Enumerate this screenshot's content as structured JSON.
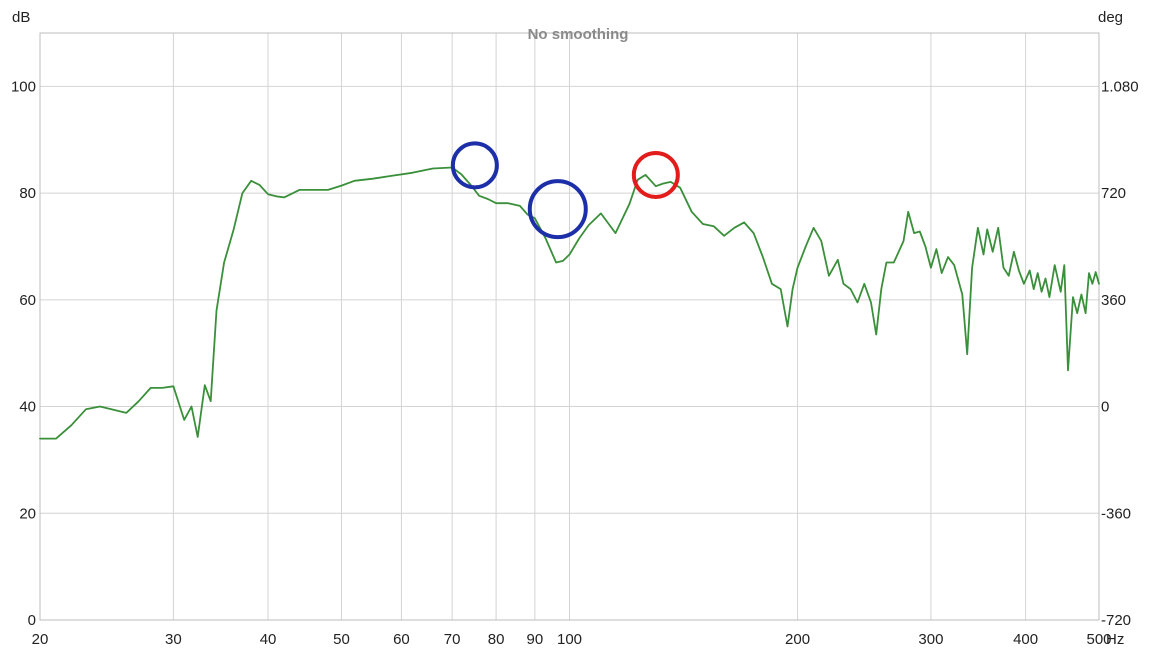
{
  "chart_data": {
    "type": "line",
    "title": "No smoothing",
    "y_unit": "dB",
    "y2_unit": "deg",
    "x_unit": "Hz",
    "x_scale": "log",
    "xlim": [
      20,
      500
    ],
    "ylim": [
      0,
      110
    ],
    "y2lim": [
      -720,
      1260
    ],
    "x_ticks": [
      20,
      30,
      40,
      50,
      60,
      70,
      80,
      90,
      100,
      200,
      300,
      400,
      500
    ],
    "x_tick_labels": [
      "20",
      "30",
      "40",
      "50",
      "60",
      "70",
      "80",
      "90",
      "100",
      "200",
      "300",
      "400",
      "500"
    ],
    "y_ticks": [
      0,
      20,
      40,
      60,
      80,
      100
    ],
    "y_tick_labels": [
      "0",
      "20",
      "40",
      "60",
      "80",
      "100"
    ],
    "y2_ticks": [
      -720,
      -360,
      0,
      360,
      720,
      1080
    ],
    "y2_tick_labels": [
      "-720",
      "-360",
      "0",
      "360",
      "720",
      "1.080"
    ],
    "grid": true,
    "series": [
      {
        "color": "#3a8f3a",
        "x": [
          20,
          21,
          22,
          23,
          24,
          26,
          27,
          28,
          29,
          30,
          31,
          31.7,
          32.3,
          33,
          33.6,
          34.2,
          35,
          36,
          37,
          38,
          39,
          40,
          41,
          42,
          44,
          46,
          48,
          50,
          52,
          55,
          58,
          62,
          66,
          70,
          72,
          74,
          76,
          78,
          80,
          83,
          86,
          88,
          90,
          93,
          96,
          98,
          100,
          103,
          106,
          110,
          115,
          120,
          123,
          126,
          130,
          133,
          136,
          140,
          145,
          150,
          155,
          160,
          165,
          170,
          175,
          180,
          185,
          190,
          194,
          197,
          200,
          205,
          210,
          215,
          220,
          226,
          230,
          235,
          240,
          245,
          250,
          254,
          258,
          262,
          268,
          272,
          276,
          280,
          285,
          290,
          295,
          300,
          305,
          310,
          316,
          322,
          330,
          335,
          340,
          346,
          352,
          356,
          362,
          368,
          374,
          380,
          386,
          392,
          398,
          405,
          410,
          415,
          420,
          425,
          430,
          437,
          445,
          450,
          455,
          462,
          468,
          474,
          480,
          485,
          490,
          495,
          500
        ],
        "values": [
          34,
          34,
          36.5,
          39.5,
          40,
          38.8,
          41,
          43.5,
          43.5,
          43.8,
          37.5,
          40,
          34.3,
          44,
          41,
          58,
          67,
          73,
          80,
          82.3,
          81.5,
          79.8,
          79.4,
          79.2,
          80.6,
          80.6,
          80.6,
          81.4,
          82.3,
          82.7,
          83.2,
          83.8,
          84.6,
          84.8,
          83.5,
          81.6,
          79.5,
          78.9,
          78.1,
          78.1,
          77.6,
          76,
          75.3,
          71.5,
          67,
          67.3,
          68.5,
          71.5,
          74,
          76.2,
          72.5,
          78,
          82.5,
          83.4,
          81.3,
          81.8,
          82.1,
          81,
          76.5,
          74.2,
          73.8,
          72,
          73.5,
          74.5,
          72.5,
          68,
          63,
          62,
          55,
          62,
          66,
          70,
          73.5,
          71,
          64.5,
          67.5,
          63,
          62,
          59.5,
          63,
          59.5,
          53.5,
          62,
          67,
          67,
          69,
          71,
          76.5,
          72.5,
          72.8,
          70,
          66,
          69.5,
          65,
          68,
          66.5,
          61,
          49.8,
          66,
          73.5,
          68.5,
          73.2,
          69,
          73.5,
          66,
          64.5,
          69,
          65.5,
          63,
          65.5,
          62,
          65,
          61.5,
          64,
          60.5,
          66.5,
          61.5,
          66.5,
          46.8,
          60.5,
          57.5,
          61,
          57.5,
          65,
          63,
          65.2,
          63
        ]
      }
    ],
    "annotations": [
      {
        "shape": "circle",
        "color": "#1c2fa8",
        "x": 75,
        "y": 85.2
      },
      {
        "shape": "circle",
        "color": "#1c2fa8",
        "x": 96.5,
        "y": 77
      },
      {
        "shape": "circle",
        "color": "#e21b1b",
        "x": 130,
        "y": 83.4
      }
    ]
  }
}
